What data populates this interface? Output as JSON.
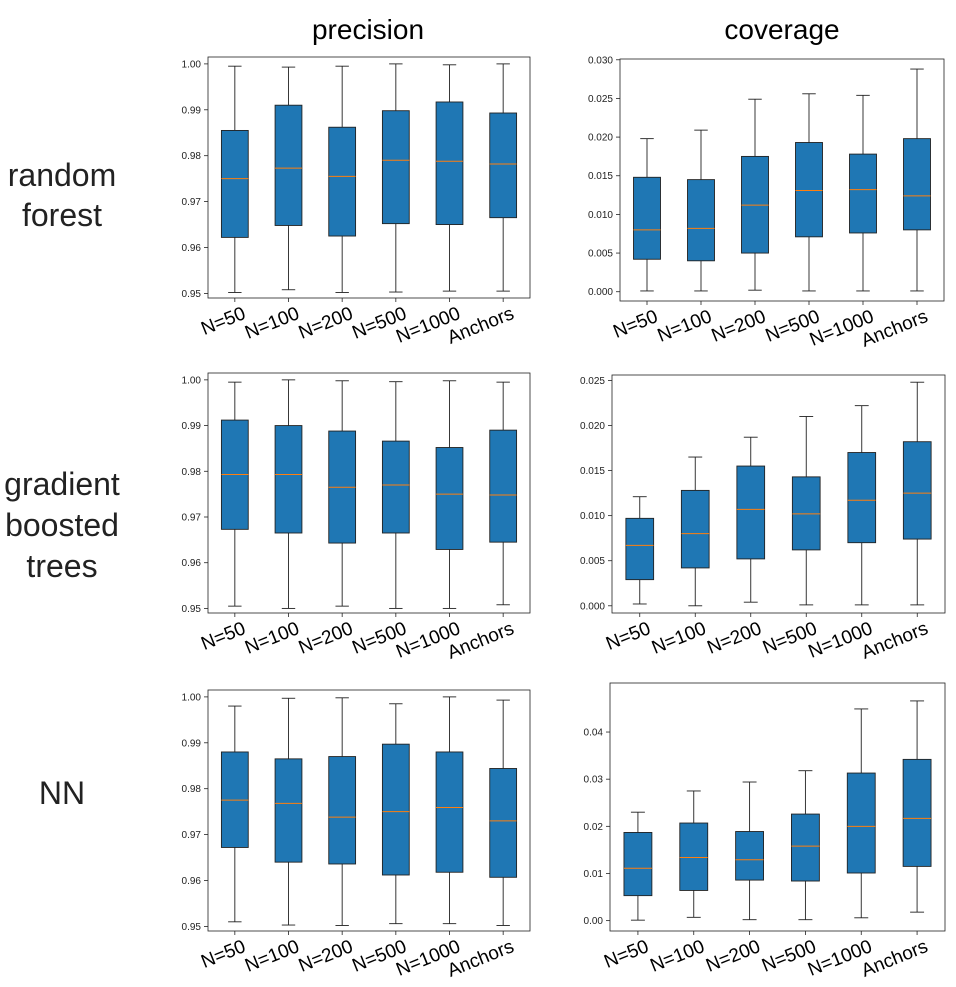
{
  "column_titles": [
    "precision",
    "coverage"
  ],
  "row_labels": [
    [
      "random",
      "forest"
    ],
    [
      "gradient",
      "boosted",
      "trees"
    ],
    [
      "NN"
    ]
  ],
  "colors": {
    "box": "#1f77b4",
    "median": "#ff7f0e",
    "edge": "#222222"
  },
  "chart_data": [
    {
      "type": "box",
      "row": "random forest",
      "metric": "precision",
      "categories": [
        "N=50",
        "N=100",
        "N=200",
        "N=500",
        "N=1000",
        "Anchors"
      ],
      "ylim": [
        0.949,
        1.0015
      ],
      "yticks": [
        0.95,
        0.96,
        0.97,
        0.98,
        0.99,
        1.0
      ],
      "ytick_labels": [
        "0.95",
        "0.96",
        "0.97",
        "0.98",
        "0.99",
        "1.00"
      ],
      "series": [
        {
          "whislo": 0.9502,
          "q1": 0.9622,
          "med": 0.975,
          "q3": 0.9855,
          "whishi": 0.9995
        },
        {
          "whislo": 0.9508,
          "q1": 0.9648,
          "med": 0.9773,
          "q3": 0.991,
          "whishi": 0.9993
        },
        {
          "whislo": 0.9502,
          "q1": 0.9625,
          "med": 0.9755,
          "q3": 0.9862,
          "whishi": 0.9995
        },
        {
          "whislo": 0.9503,
          "q1": 0.9652,
          "med": 0.979,
          "q3": 0.9898,
          "whishi": 1.0
        },
        {
          "whislo": 0.9505,
          "q1": 0.965,
          "med": 0.9788,
          "q3": 0.9917,
          "whishi": 0.9998
        },
        {
          "whislo": 0.9505,
          "q1": 0.9665,
          "med": 0.9782,
          "q3": 0.9893,
          "whishi": 1.0
        }
      ]
    },
    {
      "type": "box",
      "row": "random forest",
      "metric": "coverage",
      "categories": [
        "N=50",
        "N=100",
        "N=200",
        "N=500",
        "N=1000",
        "Anchors"
      ],
      "ylim": [
        -0.0012,
        0.0301
      ],
      "yticks": [
        0.0,
        0.005,
        0.01,
        0.015,
        0.02,
        0.025,
        0.03
      ],
      "ytick_labels": [
        "0.000",
        "0.005",
        "0.010",
        "0.015",
        "0.020",
        "0.025",
        "0.030"
      ],
      "series": [
        {
          "whislo": 0.0001,
          "q1": 0.0042,
          "med": 0.008,
          "q3": 0.0148,
          "whishi": 0.0198
        },
        {
          "whislo": 0.0001,
          "q1": 0.004,
          "med": 0.0082,
          "q3": 0.0145,
          "whishi": 0.0209
        },
        {
          "whislo": 0.0002,
          "q1": 0.005,
          "med": 0.0112,
          "q3": 0.0175,
          "whishi": 0.0249
        },
        {
          "whislo": 0.0001,
          "q1": 0.0071,
          "med": 0.0131,
          "q3": 0.0193,
          "whishi": 0.0256
        },
        {
          "whislo": 0.0001,
          "q1": 0.0076,
          "med": 0.0132,
          "q3": 0.0178,
          "whishi": 0.0254
        },
        {
          "whislo": 0.0001,
          "q1": 0.008,
          "med": 0.0124,
          "q3": 0.0198,
          "whishi": 0.0288
        }
      ]
    },
    {
      "type": "box",
      "row": "gradient boosted trees",
      "metric": "precision",
      "categories": [
        "N=50",
        "N=100",
        "N=200",
        "N=500",
        "N=1000",
        "Anchors"
      ],
      "ylim": [
        0.949,
        1.0015
      ],
      "yticks": [
        0.95,
        0.96,
        0.97,
        0.98,
        0.99,
        1.0
      ],
      "ytick_labels": [
        "0.95",
        "0.96",
        "0.97",
        "0.98",
        "0.99",
        "1.00"
      ],
      "series": [
        {
          "whislo": 0.9505,
          "q1": 0.9673,
          "med": 0.9793,
          "q3": 0.9912,
          "whishi": 0.9995
        },
        {
          "whislo": 0.95,
          "q1": 0.9665,
          "med": 0.9793,
          "q3": 0.99,
          "whishi": 1.0
        },
        {
          "whislo": 0.9505,
          "q1": 0.9643,
          "med": 0.9765,
          "q3": 0.9888,
          "whishi": 0.9998
        },
        {
          "whislo": 0.95,
          "q1": 0.9665,
          "med": 0.977,
          "q3": 0.9866,
          "whishi": 0.9996
        },
        {
          "whislo": 0.95,
          "q1": 0.9629,
          "med": 0.975,
          "q3": 0.9852,
          "whishi": 0.9998
        },
        {
          "whislo": 0.9508,
          "q1": 0.9645,
          "med": 0.9748,
          "q3": 0.989,
          "whishi": 0.9995
        }
      ]
    },
    {
      "type": "box",
      "row": "gradient boosted trees",
      "metric": "coverage",
      "categories": [
        "N=50",
        "N=100",
        "N=200",
        "N=500",
        "N=1000",
        "Anchors"
      ],
      "ylim": [
        -0.0008,
        0.0256
      ],
      "yticks": [
        0.0,
        0.005,
        0.01,
        0.015,
        0.02,
        0.025
      ],
      "ytick_labels": [
        "0.000",
        "0.005",
        "0.010",
        "0.015",
        "0.020",
        "0.025"
      ],
      "series": [
        {
          "whislo": 0.0002,
          "q1": 0.0029,
          "med": 0.0067,
          "q3": 0.0097,
          "whishi": 0.0121
        },
        {
          "whislo": 0.0,
          "q1": 0.0042,
          "med": 0.008,
          "q3": 0.0128,
          "whishi": 0.0165
        },
        {
          "whislo": 0.0004,
          "q1": 0.0052,
          "med": 0.0107,
          "q3": 0.0155,
          "whishi": 0.0187
        },
        {
          "whislo": 0.0001,
          "q1": 0.0062,
          "med": 0.0102,
          "q3": 0.0143,
          "whishi": 0.021
        },
        {
          "whislo": 0.0001,
          "q1": 0.007,
          "med": 0.0117,
          "q3": 0.017,
          "whishi": 0.0222
        },
        {
          "whislo": 0.0001,
          "q1": 0.0074,
          "med": 0.0125,
          "q3": 0.0182,
          "whishi": 0.0248
        }
      ]
    },
    {
      "type": "box",
      "row": "NN",
      "metric": "precision",
      "categories": [
        "N=50",
        "N=100",
        "N=200",
        "N=500",
        "N=1000",
        "Anchors"
      ],
      "ylim": [
        0.949,
        1.0015
      ],
      "yticks": [
        0.95,
        0.96,
        0.97,
        0.98,
        0.99,
        1.0
      ],
      "ytick_labels": [
        "0.95",
        "0.96",
        "0.97",
        "0.98",
        "0.99",
        "1.00"
      ],
      "series": [
        {
          "whislo": 0.951,
          "q1": 0.9672,
          "med": 0.9775,
          "q3": 0.988,
          "whishi": 0.998
        },
        {
          "whislo": 0.9503,
          "q1": 0.964,
          "med": 0.9768,
          "q3": 0.9865,
          "whishi": 0.9997
        },
        {
          "whislo": 0.9502,
          "q1": 0.9636,
          "med": 0.9738,
          "q3": 0.987,
          "whishi": 0.9998
        },
        {
          "whislo": 0.9506,
          "q1": 0.9612,
          "med": 0.975,
          "q3": 0.9897,
          "whishi": 0.9985
        },
        {
          "whislo": 0.9506,
          "q1": 0.9618,
          "med": 0.9759,
          "q3": 0.988,
          "whishi": 1.0
        },
        {
          "whislo": 0.9502,
          "q1": 0.9607,
          "med": 0.973,
          "q3": 0.9844,
          "whishi": 0.9993
        }
      ]
    },
    {
      "type": "box",
      "row": "NN",
      "metric": "coverage",
      "categories": [
        "N=50",
        "N=100",
        "N=200",
        "N=500",
        "N=1000",
        "Anchors"
      ],
      "ylim": [
        -0.0022,
        0.0504
      ],
      "yticks": [
        0.0,
        0.01,
        0.02,
        0.03,
        0.04
      ],
      "ytick_labels": [
        "0.00",
        "0.01",
        "0.02",
        "0.03",
        "0.04"
      ],
      "series": [
        {
          "whislo": 0.0001,
          "q1": 0.0053,
          "med": 0.0111,
          "q3": 0.0187,
          "whishi": 0.023
        },
        {
          "whislo": 0.0007,
          "q1": 0.0064,
          "med": 0.0134,
          "q3": 0.0207,
          "whishi": 0.0275
        },
        {
          "whislo": 0.0002,
          "q1": 0.0086,
          "med": 0.0129,
          "q3": 0.0189,
          "whishi": 0.0294
        },
        {
          "whislo": 0.0002,
          "q1": 0.0084,
          "med": 0.0158,
          "q3": 0.0226,
          "whishi": 0.0318
        },
        {
          "whislo": 0.0006,
          "q1": 0.0101,
          "med": 0.02,
          "q3": 0.0313,
          "whishi": 0.0449
        },
        {
          "whislo": 0.0018,
          "q1": 0.0115,
          "med": 0.0217,
          "q3": 0.0342,
          "whishi": 0.0466
        }
      ]
    }
  ]
}
